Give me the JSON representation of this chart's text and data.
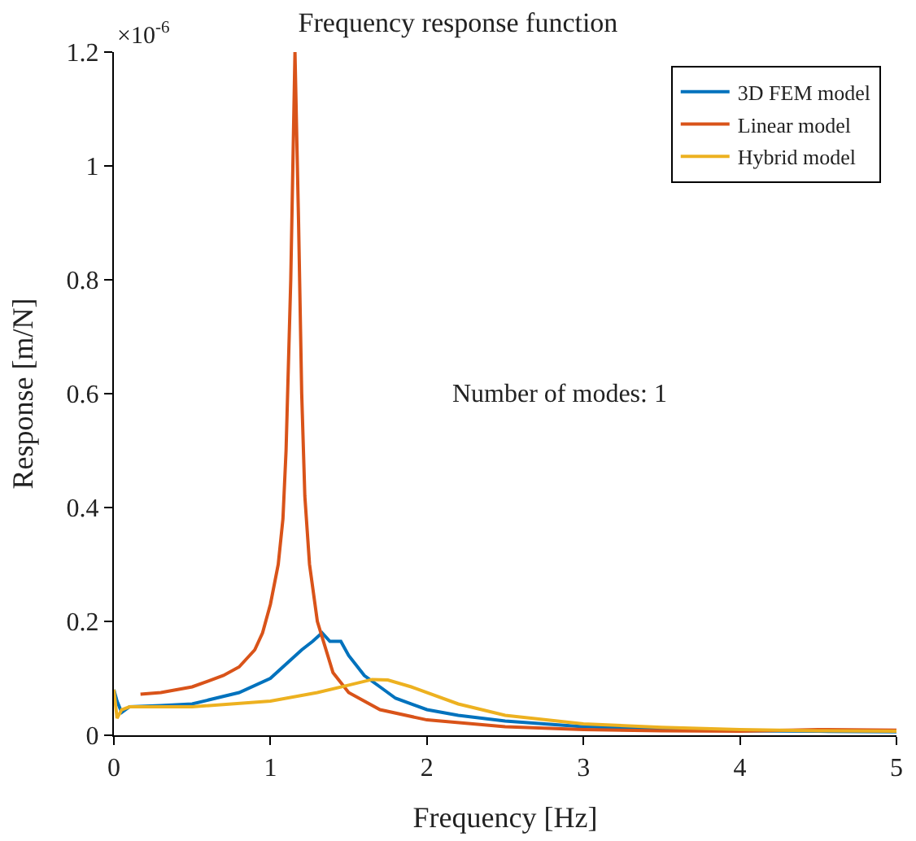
{
  "chart_data": {
    "type": "line",
    "title": "Frequency response function",
    "xlabel": "Frequency [Hz]",
    "ylabel": "Response [m/N]",
    "annotations": [
      "×10$^{-6}$",
      "Number of modes: 1"
    ],
    "xlim": [
      0,
      5
    ],
    "xticks": [
      0,
      1,
      2,
      3,
      4,
      5
    ],
    "ylim": [
      0,
      1.2
    ],
    "yticks": [
      0,
      0.2,
      0.4,
      0.6,
      0.8,
      1,
      1.2
    ],
    "legend": "top right",
    "marker": "none",
    "line_style": "solid",
    "series": [
      {
        "name": "3D FEM model",
        "color": "#0072bd",
        "x": [
          0,
          0.02,
          0.05,
          0.1,
          0.3,
          0.5,
          0.8,
          1,
          1.1,
          1.2,
          1.27,
          1.33,
          1.38,
          1.45,
          1.5,
          1.6,
          1.7,
          1.8,
          2,
          2.2,
          2.5,
          3,
          3.5,
          4,
          4.5,
          5
        ],
        "values": [
          0.08,
          0.06,
          0.04,
          0.05,
          0.052,
          0.055,
          0.075,
          0.1,
          0.125,
          0.15,
          0.165,
          0.18,
          0.165,
          0.165,
          0.14,
          0.105,
          0.085,
          0.065,
          0.045,
          0.035,
          0.025,
          0.015,
          0.011,
          0.008,
          0.007,
          0.006
        ]
      },
      {
        "name": "Linear model",
        "color": "#d95319",
        "x": [
          0.17,
          0.3,
          0.5,
          0.7,
          0.8,
          0.9,
          0.95,
          1,
          1.05,
          1.08,
          1.1,
          1.13,
          1.157,
          1.18,
          1.2,
          1.22,
          1.25,
          1.3,
          1.4,
          1.5,
          1.7,
          2,
          2.5,
          3,
          3.5,
          4,
          4.5,
          5
        ],
        "values": [
          0.072,
          0.075,
          0.085,
          0.105,
          0.12,
          0.15,
          0.18,
          0.23,
          0.3,
          0.38,
          0.5,
          0.8,
          1.2,
          0.9,
          0.6,
          0.42,
          0.3,
          0.2,
          0.11,
          0.075,
          0.045,
          0.027,
          0.015,
          0.01,
          0.008,
          0.007,
          0.01,
          0.009
        ]
      },
      {
        "name": "Hybrid model",
        "color": "#edb120",
        "x": [
          0,
          0.02,
          0.05,
          0.1,
          0.5,
          1,
          1.3,
          1.5,
          1.65,
          1.75,
          1.9,
          2.2,
          2.5,
          3,
          3.5,
          4,
          4.5,
          5
        ],
        "values": [
          0.08,
          0.03,
          0.045,
          0.05,
          0.05,
          0.06,
          0.075,
          0.088,
          0.098,
          0.097,
          0.085,
          0.055,
          0.035,
          0.02,
          0.014,
          0.01,
          0.008,
          0.007
        ]
      }
    ]
  }
}
